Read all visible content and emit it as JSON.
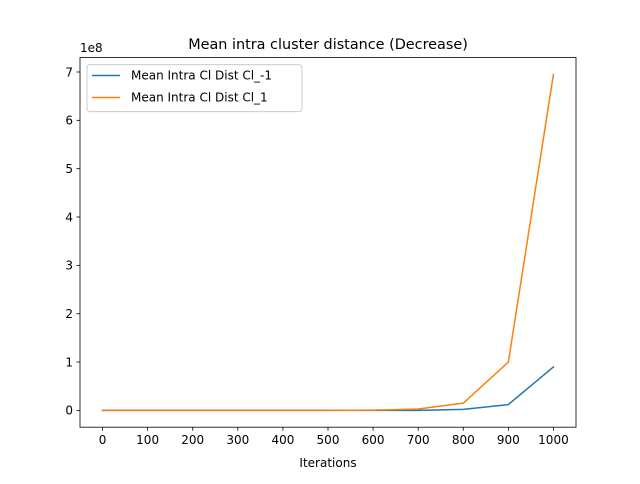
{
  "chart_data": {
    "type": "line",
    "title": "Mean intra cluster distance (Decrease)",
    "xlabel": "Iterations",
    "ylabel": "",
    "x": [
      0,
      100,
      200,
      300,
      400,
      500,
      600,
      700,
      800,
      900,
      1000
    ],
    "series": [
      {
        "name": "Mean Intra Cl Dist Cl_-1",
        "color": "#1f77b4",
        "values": [
          0,
          0,
          0,
          0,
          0,
          0,
          0,
          100000,
          2000000,
          12000000,
          90000000
        ]
      },
      {
        "name": "Mean Intra Cl Dist Cl_1",
        "color": "#ff7f0e",
        "values": [
          0,
          0,
          0,
          0,
          0,
          0,
          500000,
          3000000,
          15000000,
          100000000,
          695000000
        ]
      }
    ],
    "xlim": [
      -50,
      1050
    ],
    "ylim": [
      -34750000,
      729750000
    ],
    "x_ticks": [
      0,
      100,
      200,
      300,
      400,
      500,
      600,
      700,
      800,
      900,
      1000
    ],
    "y_ticks": [
      0,
      100000000,
      200000000,
      300000000,
      400000000,
      500000000,
      600000000,
      700000000
    ],
    "y_tick_labels": [
      "0",
      "1",
      "2",
      "3",
      "4",
      "5",
      "6",
      "7"
    ],
    "y_offset_text": "1e8",
    "legend_position": "top-left",
    "grid": false
  }
}
